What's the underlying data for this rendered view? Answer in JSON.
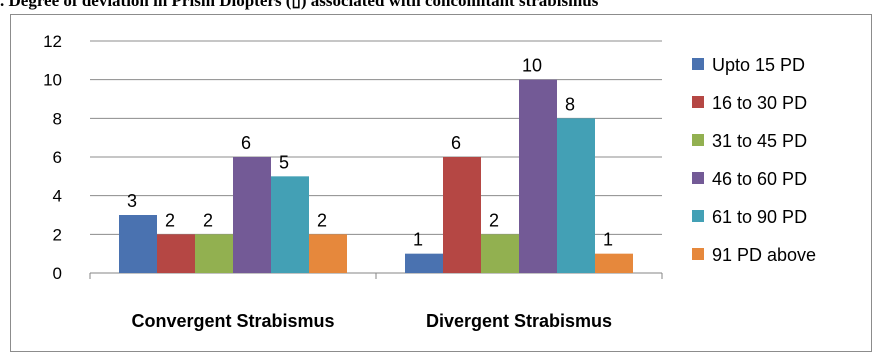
{
  "title": ". Degree of deviation in Prism Diopters (▯) associated with concomitant strabismus",
  "chart_data": {
    "type": "bar",
    "title": ". Degree of deviation in Prism Diopters (▯) associated with concomitant strabismus",
    "categories": [
      "Convergent Strabismus",
      "Divergent Strabismus"
    ],
    "series": [
      {
        "name": "Upto 15 PD",
        "values": [
          3,
          1
        ],
        "color": "#4a72b0"
      },
      {
        "name": "16 to 30 PD",
        "values": [
          2,
          6
        ],
        "color": "#b54744"
      },
      {
        "name": "31 to 45 PD",
        "values": [
          2,
          2
        ],
        "color": "#92b050"
      },
      {
        "name": "46 to 60 PD",
        "values": [
          6,
          10
        ],
        "color": "#735a96"
      },
      {
        "name": "61 to 90 PD",
        "values": [
          5,
          8
        ],
        "color": "#43a0b5"
      },
      {
        "name": "91 PD above",
        "values": [
          2,
          1
        ],
        "color": "#e6883c"
      }
    ],
    "ylim": [
      0,
      12
    ],
    "yticks": [
      0,
      2,
      4,
      6,
      8,
      10,
      12
    ],
    "grid": true,
    "legend": "right"
  }
}
